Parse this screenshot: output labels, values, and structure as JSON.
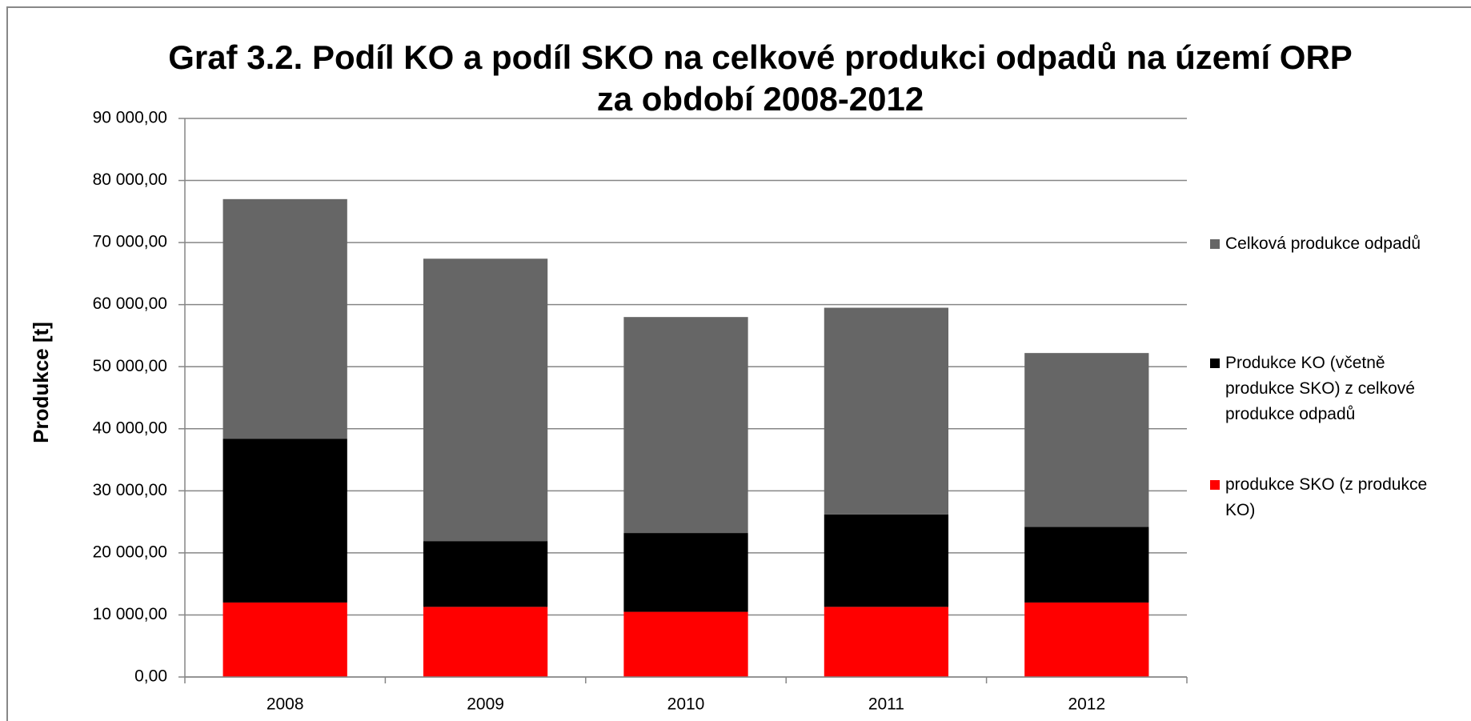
{
  "chart_data": {
    "type": "stacked_bar",
    "title": "Graf 3.2. Podíl KO a podíl SKO na celkové produkci odpadů na území ORP za období 2008-2012",
    "y_label": "Produkce [t]",
    "categories": [
      "2008",
      "2009",
      "2010",
      "2011",
      "2012"
    ],
    "series": [
      {
        "name": "produkce SKO (z produkce KO)",
        "color": "#ff0000",
        "values": [
          12000,
          11300,
          10500,
          11300,
          12000
        ]
      },
      {
        "name": "Produkce KO (včetně produkce SKO) z celkové produkce odpadů",
        "color": "#000000",
        "values": [
          26400,
          10600,
          12700,
          14900,
          12200
        ]
      },
      {
        "name": "Celková produkce odpadů",
        "color": "#666666",
        "values": [
          38600,
          45500,
          34800,
          33300,
          28000
        ]
      }
    ],
    "ylim": [
      0,
      90000
    ],
    "yticks": [
      {
        "value": 0,
        "label": "0,00"
      },
      {
        "value": 10000,
        "label": "10 000,00"
      },
      {
        "value": 20000,
        "label": "20 000,00"
      },
      {
        "value": 30000,
        "label": "30 000,00"
      },
      {
        "value": 40000,
        "label": "40 000,00"
      },
      {
        "value": 50000,
        "label": "50 000,00"
      },
      {
        "value": 60000,
        "label": "60 000,00"
      },
      {
        "value": 70000,
        "label": "70 000,00"
      },
      {
        "value": 80000,
        "label": "80 000,00"
      },
      {
        "value": 90000,
        "label": "90 000,00"
      }
    ],
    "grid": true,
    "legend": "right"
  }
}
